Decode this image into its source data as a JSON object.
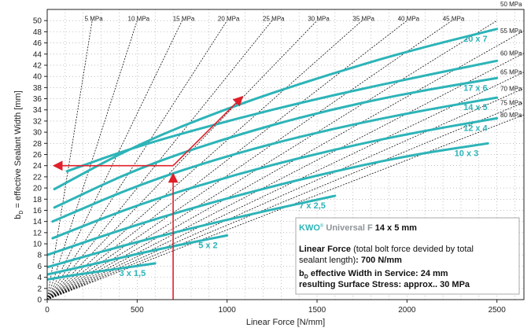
{
  "chart_data": {
    "type": "line",
    "xlabel": "Linear Force [N/mm]",
    "ylabel": "b_D = effective Sealant Width [mm]",
    "ylabel_main": "b",
    "ylabel_sub": "D",
    "ylabel_rest": " = effective Sealant Width [mm]",
    "xlim": [
      0,
      2650
    ],
    "ylim": [
      0,
      52
    ],
    "x_ticks": [
      0,
      500,
      1000,
      1500,
      2000,
      2500
    ],
    "y_ticks": [
      0,
      2,
      4,
      6,
      8,
      10,
      12,
      14,
      16,
      18,
      20,
      22,
      24,
      26,
      28,
      30,
      32,
      34,
      36,
      38,
      40,
      42,
      44,
      46,
      48,
      50
    ],
    "grid": true,
    "stress_lines": [
      {
        "label": "5 MPa",
        "mpa": 5
      },
      {
        "label": "10 MPa",
        "mpa": 10
      },
      {
        "label": "15 MPa",
        "mpa": 15
      },
      {
        "label": "20 MPa",
        "mpa": 20
      },
      {
        "label": "25 MPa",
        "mpa": 25
      },
      {
        "label": "30 MPa",
        "mpa": 30
      },
      {
        "label": "35 MPa",
        "mpa": 35
      },
      {
        "label": "40 MPa",
        "mpa": 40
      },
      {
        "label": "45 MPa",
        "mpa": 45
      },
      {
        "label": "50 MPa",
        "mpa": 50
      },
      {
        "label": "55 MPa",
        "mpa": 55
      },
      {
        "label": "60 MPa",
        "mpa": 60
      },
      {
        "label": "65 MPa",
        "mpa": 65
      },
      {
        "label": "70 MPa",
        "mpa": 70
      },
      {
        "label": "75 MPa",
        "mpa": 75
      },
      {
        "label": "80 MPa",
        "mpa": 80
      }
    ],
    "series": [
      {
        "name": "3 x 1,5",
        "x": [
          0,
          150,
          300,
          450,
          600
        ],
        "y": [
          3.6,
          4.4,
          5.1,
          5.8,
          6.5
        ]
      },
      {
        "name": "5 x 2",
        "x": [
          0,
          250,
          500,
          750,
          1000
        ],
        "y": [
          4.5,
          6.3,
          8.2,
          9.9,
          11.5
        ]
      },
      {
        "name": "7 x 2,5",
        "x": [
          0,
          400,
          800,
          1200,
          1600
        ],
        "y": [
          5.8,
          9.5,
          12.8,
          15.8,
          18.6
        ]
      },
      {
        "name": "10 x 3",
        "x": [
          0,
          500,
          1000,
          1500,
          2000,
          2450
        ],
        "y": [
          8.0,
          13.5,
          18.2,
          22.3,
          25.8,
          28.0
        ]
      },
      {
        "name": "12 x 4",
        "x": [
          30,
          500,
          1000,
          1500,
          2000,
          2500
        ],
        "y": [
          11.0,
          17.0,
          22.0,
          26.2,
          29.7,
          32.5
        ]
      },
      {
        "name": "14 x 5",
        "x": [
          30,
          500,
          1000,
          1500,
          2000,
          2500
        ],
        "y": [
          14.0,
          20.5,
          25.8,
          30.0,
          33.4,
          36.2
        ]
      },
      {
        "name": "17 x 6",
        "x": [
          40,
          500,
          1000,
          1500,
          2000,
          2500
        ],
        "y": [
          16.5,
          23.5,
          29.0,
          33.5,
          37.0,
          39.7
        ]
      },
      {
        "name": "20 x 7",
        "x": [
          40,
          500,
          1000,
          1500,
          2000,
          2500
        ],
        "y": [
          19.8,
          27.8,
          34.3,
          39.7,
          44.5,
          48.5
        ]
      },
      {
        "name": "",
        "x": [
          110,
          500,
          1000,
          1500,
          2000,
          2500
        ],
        "y": [
          23.0,
          27.5,
          32.0,
          36.0,
          39.5,
          42.8
        ]
      }
    ],
    "annotation": {
      "force": 700,
      "width": 24,
      "stress": 30
    },
    "info_box": {
      "brand": "KWO",
      "reg": "®",
      "product": " Universal F",
      "size": " 14 x 5 mm",
      "line1_bold": "Linear Force",
      "line1_rest": " (total bolt force devided by total",
      "line2_rest": "sealant length)",
      "line2_colon": ": ",
      "line2_bold": "700 N/mm",
      "line3_b": "b",
      "line3_sub": "D",
      "line3_rest": " effective Width in Service: 24 mm",
      "line4": "resulting Surface Stress: approx.. 30 MPa"
    }
  },
  "colors": {
    "curve": "#2db4b8",
    "arrow": "#e0202a",
    "stress_line": "#111111",
    "grid": "#9a9a9a",
    "box_border": "#aaaaaa"
  }
}
